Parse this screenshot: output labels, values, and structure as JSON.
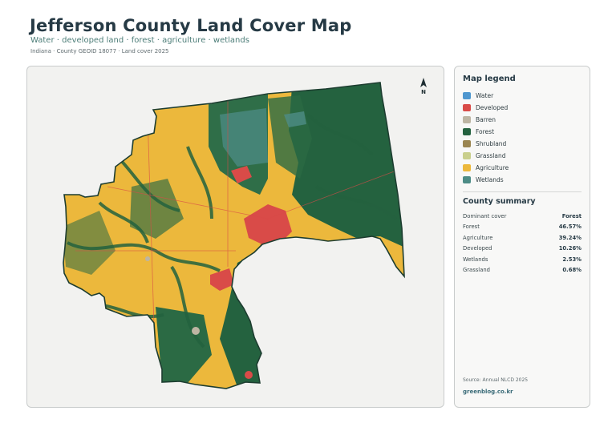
{
  "header": {
    "title": "Jefferson County Land Cover Map",
    "subtitle": "Water · developed land · forest · agriculture · wetlands",
    "meta": "Indiana · County GEOID 18077 · Land cover 2025"
  },
  "map": {
    "north_label": "N",
    "colors": {
      "background": "#f2f2f0",
      "outline": "#1d3d30",
      "river": "#f2f2f0"
    }
  },
  "legend": {
    "title": "Map legend",
    "items": [
      {
        "label": "Water",
        "color": "#4f97cf"
      },
      {
        "label": "Developed",
        "color": "#d94b48"
      },
      {
        "label": "Barren",
        "color": "#bdb5a3"
      },
      {
        "label": "Forest",
        "color": "#24623f"
      },
      {
        "label": "Shrubland",
        "color": "#9a8550"
      },
      {
        "label": "Grassland",
        "color": "#c9cf8c"
      },
      {
        "label": "Agriculture",
        "color": "#ecb83c"
      },
      {
        "label": "Wetlands",
        "color": "#4d8c86"
      }
    ]
  },
  "summary": {
    "title": "County summary",
    "rows": [
      {
        "key": "Dominant cover",
        "value": "Forest"
      },
      {
        "key": "Forest",
        "value": "46.57%"
      },
      {
        "key": "Agriculture",
        "value": "39.24%"
      },
      {
        "key": "Developed",
        "value": "10.26%"
      },
      {
        "key": "Wetlands",
        "value": "2.53%"
      },
      {
        "key": "Grassland",
        "value": "0.68%"
      }
    ]
  },
  "footer": {
    "source": "Source: Annual NLCD 2025",
    "site": "greenblog.co.kr"
  }
}
